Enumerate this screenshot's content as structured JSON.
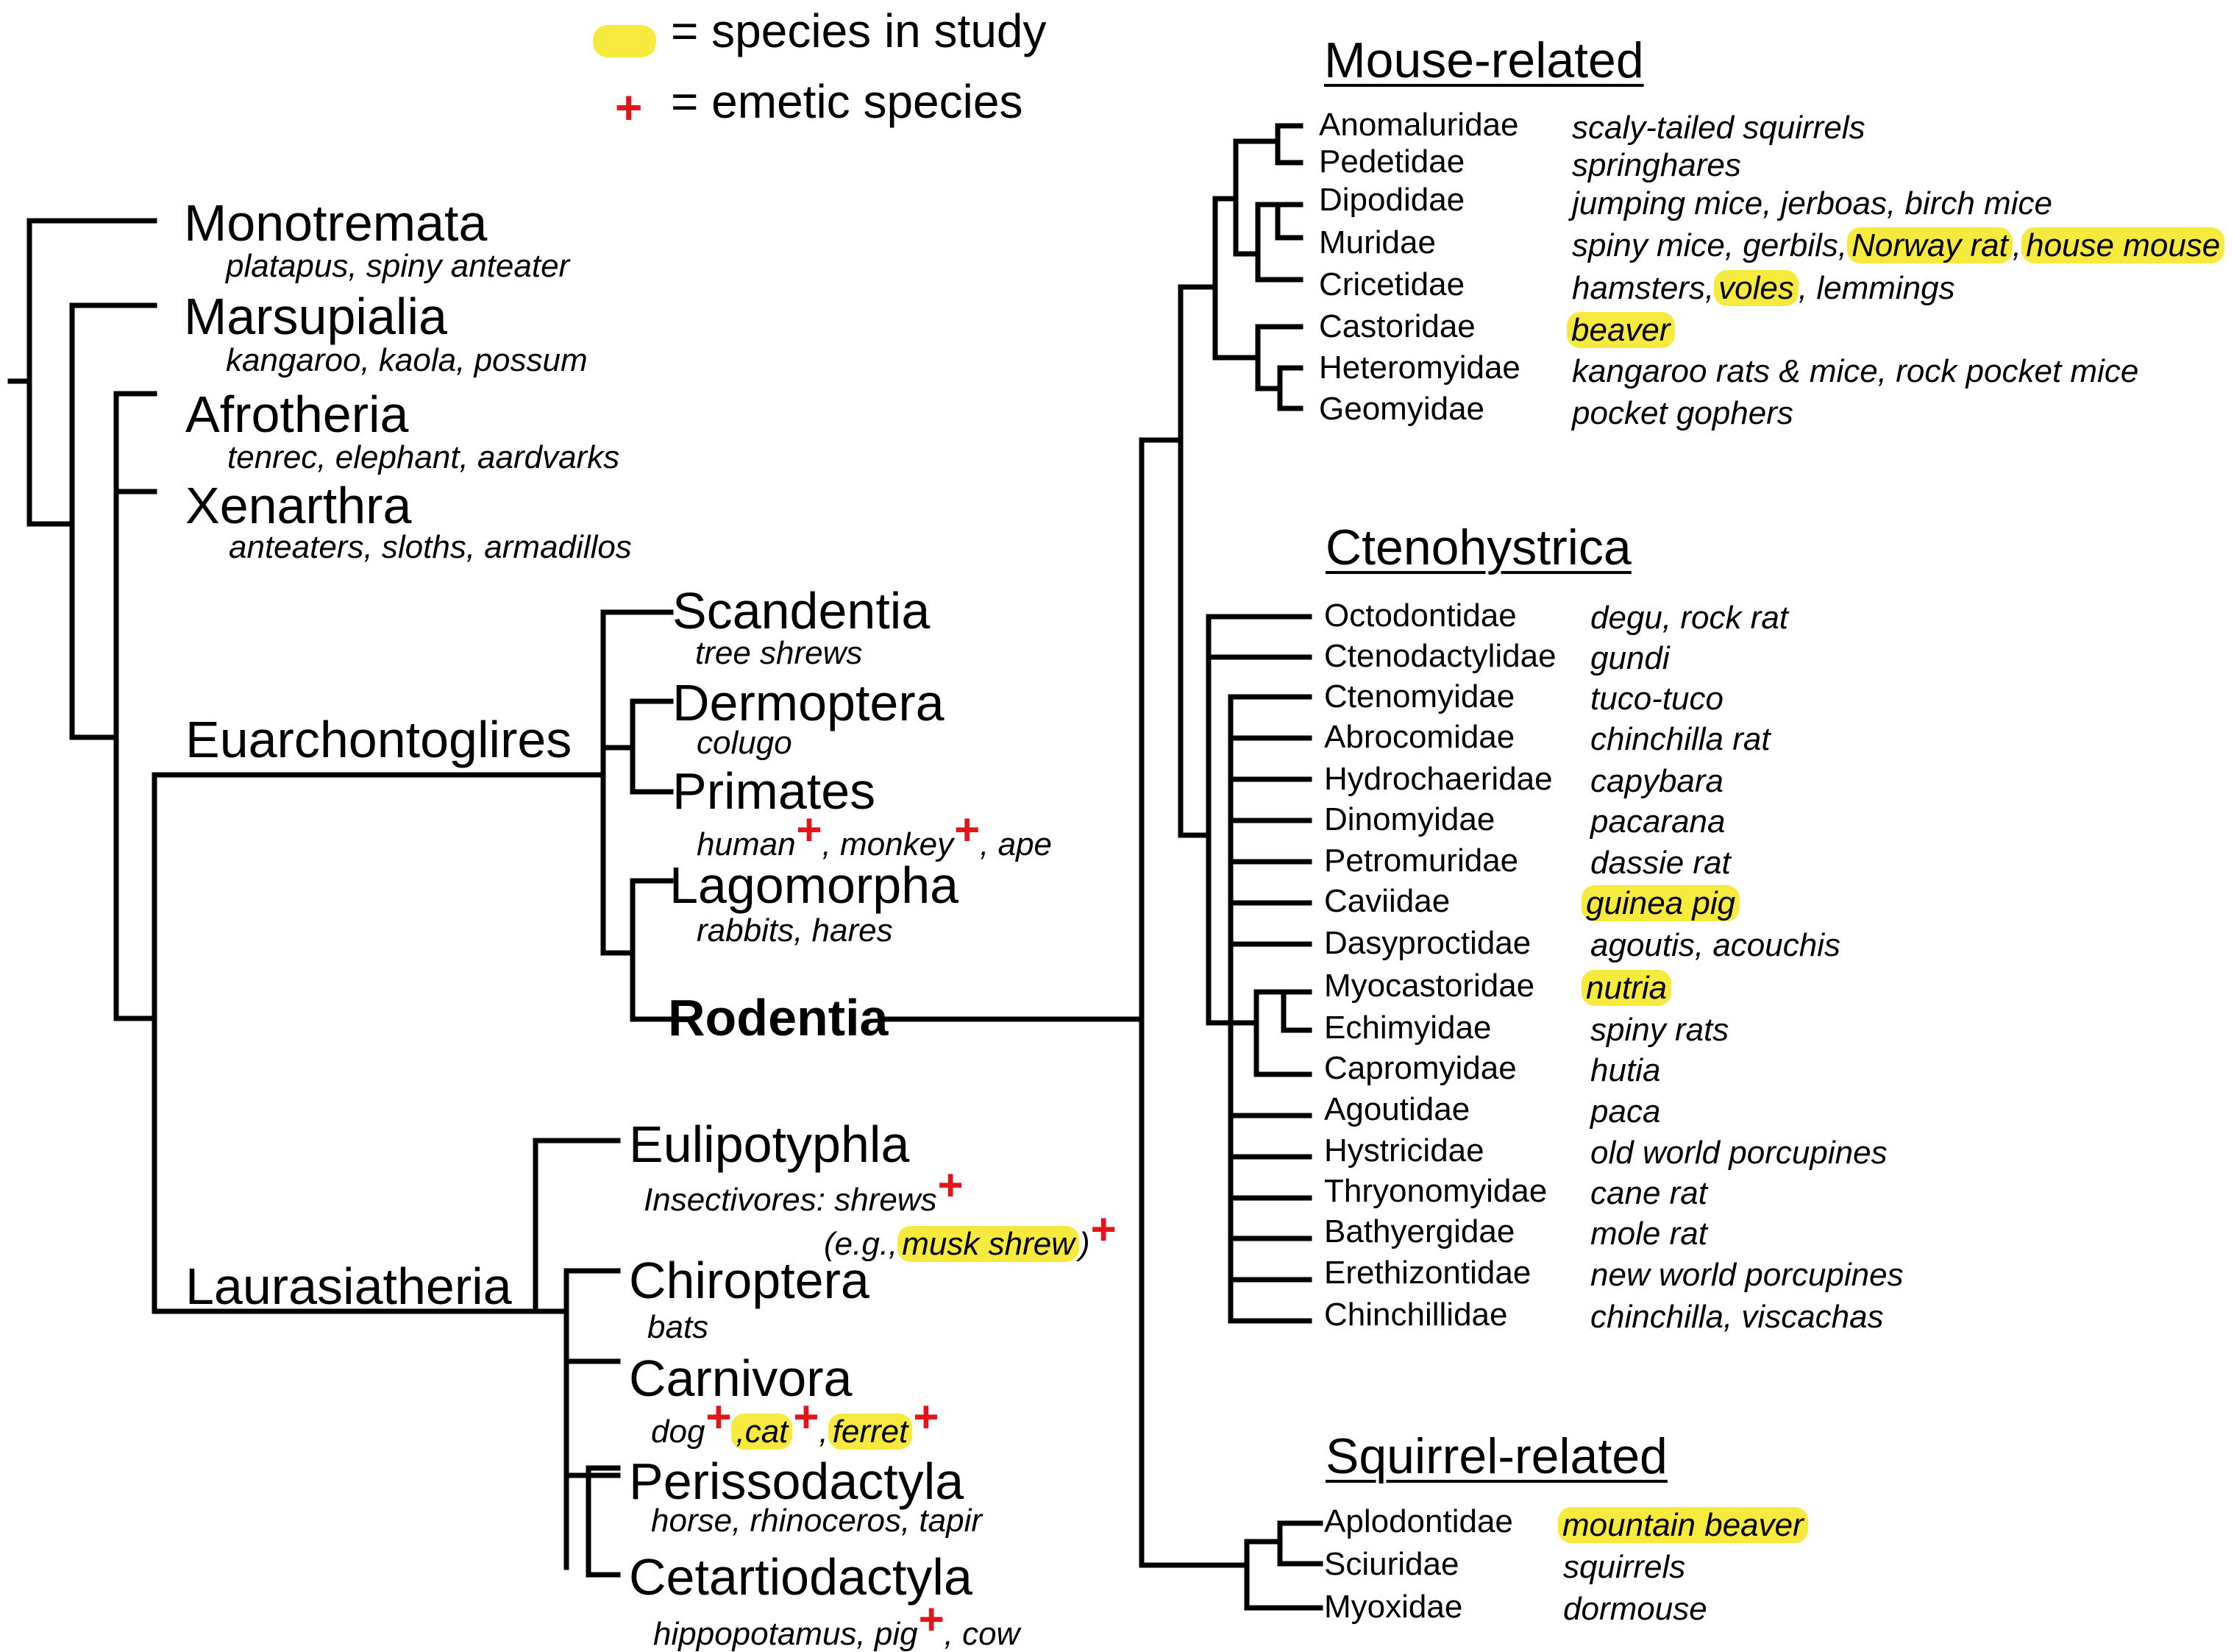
{
  "legend": {
    "species_label": "= species in study",
    "emetic_label": "= emetic species",
    "plus_symbol": "+",
    "highlight_color": "#f7ea3f",
    "emetic_color": "#e3141b"
  },
  "mammals": {
    "monotremata": {
      "name": "Monotremata",
      "common": "platapus, spiny anteater"
    },
    "marsupialia": {
      "name": "Marsupialia",
      "common": "kangaroo, kaola, possum"
    },
    "afrotheria": {
      "name": "Afrotheria",
      "common": "tenrec, elephant, aardvarks"
    },
    "xenarthra": {
      "name": "Xenarthra",
      "common": "anteaters, sloths, armadillos"
    },
    "euarchontoglires": "Euarchontoglires",
    "scandentia": {
      "name": "Scandentia",
      "common": "tree shrews"
    },
    "dermoptera": {
      "name": "Dermoptera",
      "common": "colugo"
    },
    "primates": {
      "name": "Primates",
      "human": "human",
      "monkey": ", monkey",
      "ape": ", ape"
    },
    "lagomorpha": {
      "name": "Lagomorpha",
      "common": "rabbits, hares"
    },
    "rodentia": "Rodentia",
    "laurasiatheria": "Laurasiatheria",
    "eulipotyphla": {
      "name": "Eulipotyphla",
      "line1": "Insectivores: shrews",
      "eg_prefix": "(e.g.,",
      "musk_shrew": "musk shrew",
      "eg_suffix": ")"
    },
    "chiroptera": {
      "name": "Chiroptera",
      "common": "bats"
    },
    "carnivora": {
      "name": "Carnivora",
      "dog": "dog",
      "cat": ",cat",
      "comma": ",",
      "ferret": "ferret"
    },
    "perissodactyla": {
      "name": "Perissodactyla",
      "common": "horse, rhinoceros, tapir"
    },
    "cetartiodactyla": {
      "name": "Cetartiodactyla",
      "pig": "hippopotamus, pig",
      "cow": ", cow"
    }
  },
  "mouse_related": {
    "heading": "Mouse-related",
    "families": [
      {
        "family": "Anomaluridae",
        "common": "scaly-tailed squirrels"
      },
      {
        "family": "Pedetidae",
        "common": "springhares"
      },
      {
        "family": "Dipodidae",
        "common": "jumping mice, jerboas,  birch mice"
      },
      {
        "family": "Muridae",
        "common_prefix": "spiny mice, gerbils,",
        "norway_rat": "Norway rat",
        "comma": ",",
        "house_mouse": "house mouse"
      },
      {
        "family": "Cricetidae",
        "common_prefix": "hamsters,",
        "voles": "voles",
        "common_suffix": ", lemmings"
      },
      {
        "family": "Castoridae",
        "beaver": "beaver"
      },
      {
        "family": "Heteromyidae",
        "common": "kangaroo rats & mice, rock pocket mice"
      },
      {
        "family": "Geomyidae",
        "common": "pocket gophers"
      }
    ]
  },
  "ctenohystrica": {
    "heading": "Ctenohystrica",
    "families": [
      {
        "family": "Octodontidae",
        "common": "degu, rock rat"
      },
      {
        "family": "Ctenodactylidae",
        "common": "gundi"
      },
      {
        "family": "Ctenomyidae",
        "common": "tuco-tuco"
      },
      {
        "family": "Abrocomidae",
        "common": "chinchilla rat"
      },
      {
        "family": "Hydrochaeridae",
        "common": "capybara"
      },
      {
        "family": "Dinomyidae",
        "common": "pacarana"
      },
      {
        "family": "Petromuridae",
        "common": "dassie rat"
      },
      {
        "family": "Caviidae",
        "common": "guinea pig"
      },
      {
        "family": "Dasyproctidae",
        "common": "agoutis, acouchis"
      },
      {
        "family": "Myocastoridae",
        "common": "nutria"
      },
      {
        "family": "Echimyidae",
        "common": "spiny rats"
      },
      {
        "family": "Capromyidae",
        "common": "hutia"
      },
      {
        "family": "Agoutidae",
        "common": "paca"
      },
      {
        "family": "Hystricidae",
        "common": "old world porcupines"
      },
      {
        "family": "Thryonomyidae",
        "common": "cane rat"
      },
      {
        "family": "Bathyergidae",
        "common": "mole rat"
      },
      {
        "family": "Erethizontidae",
        "common": "new world porcupines"
      },
      {
        "family": "Chinchillidae",
        "common": "chinchilla, viscachas"
      }
    ]
  },
  "squirrel_related": {
    "heading": "Squirrel-related",
    "families": [
      {
        "family": "Aplodontidae",
        "common": "mountain beaver"
      },
      {
        "family": "Sciuridae",
        "common": "squirrels"
      },
      {
        "family": "Myoxidae",
        "common": "dormouse"
      }
    ]
  }
}
